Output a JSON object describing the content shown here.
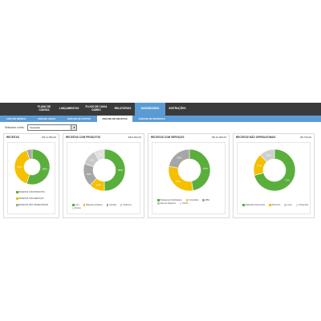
{
  "nav": {
    "items": [
      {
        "label": "PLANO DE\nCONTAS",
        "active": false
      },
      {
        "label": "LANÇAMENTOS",
        "active": false
      },
      {
        "label": "FLUXO DE CAIXA\nDIÁRIO",
        "active": false
      },
      {
        "label": "RELATÓRIOS",
        "active": false
      },
      {
        "label": "DASHBOARDS",
        "active": true
      },
      {
        "label": "INSTRUÇÕES",
        "active": false
      }
    ]
  },
  "subnav": {
    "items": [
      {
        "label": "ANÁLISE MENSAL",
        "active": false
      },
      {
        "label": "ANÁLISE ANUAL",
        "active": false
      },
      {
        "label": "ANÁLISE DE CUSTOS",
        "active": false
      },
      {
        "label": "ANÁLISE DE RECEITAS",
        "active": true
      },
      {
        "label": "ANÁLISE DE DESPESAS",
        "active": false
      }
    ]
  },
  "selector": {
    "label": "Selecione o mês:",
    "value": "Fevereiro"
  },
  "colors": {
    "green": "#5aaf3c",
    "yellow": "#f5c000",
    "gray": "#a6a6a6",
    "lightgray": "#cfcfcf"
  },
  "panels": [
    {
      "title": "RECEITAS",
      "value": "R$ 11.950,00",
      "chart_data": {
        "type": "pie",
        "labels": [
          "RECEITAS COM PRODUTOS",
          "RECEITAS COM SERVIÇOS",
          "RECEITAS NÃO OPERACIONAIS"
        ],
        "values": [
          55,
          40,
          5
        ],
        "data_labels": [
          "55%",
          "40%",
          ""
        ],
        "colors": [
          "#5aaf3c",
          "#f5c000",
          "#a6a6a6"
        ]
      }
    },
    {
      "title": "RECEITAS COM PRODUTOS",
      "value": "R$ 8.000,00",
      "chart_data": {
        "type": "pie",
        "labels": [
          "Livro",
          "Materiais escolares",
          "Apostila",
          "Cadernos",
          "Outros"
        ],
        "values": [
          50,
          12,
          18,
          12,
          8
        ],
        "data_labels": [
          "50%",
          "12%",
          "18%",
          "12%",
          "8%"
        ],
        "colors": [
          "#5aaf3c",
          "#f5c000",
          "#a6a6a6",
          "#c8c8c8",
          "#e0e0e0"
        ]
      }
    },
    {
      "title": "RECEITAS COM SERVIÇOS",
      "value": "R$ 10.900,00",
      "chart_data": {
        "type": "pie",
        "labels": [
          "Planejamento Estratégico",
          "Consultoria",
          "MBA",
          "Fase de Negócios",
          "Outros"
        ],
        "values": [
          47,
          31,
          22,
          0,
          0
        ],
        "data_labels": [
          "47%",
          "31%",
          "22%",
          "",
          ""
        ],
        "colors": [
          "#5aaf3c",
          "#f5c000",
          "#a6a6a6",
          "#c8c8c8",
          "#e0e0e0"
        ]
      }
    },
    {
      "title": "RECEITAS NÃO OPERACIONAIS",
      "value": "R$ 700,00",
      "chart_data": {
        "type": "pie",
        "labels": [
          "Aplicações Financeiras",
          "Patrocínio",
          "Juros",
          "Outras Rec."
        ],
        "values": [
          71,
          17,
          12,
          0
        ],
        "data_labels": [
          "71%",
          "17%",
          "12%",
          ""
        ],
        "colors": [
          "#5aaf3c",
          "#f5c000",
          "#cfcfcf",
          "#e0e0e0"
        ]
      }
    }
  ]
}
